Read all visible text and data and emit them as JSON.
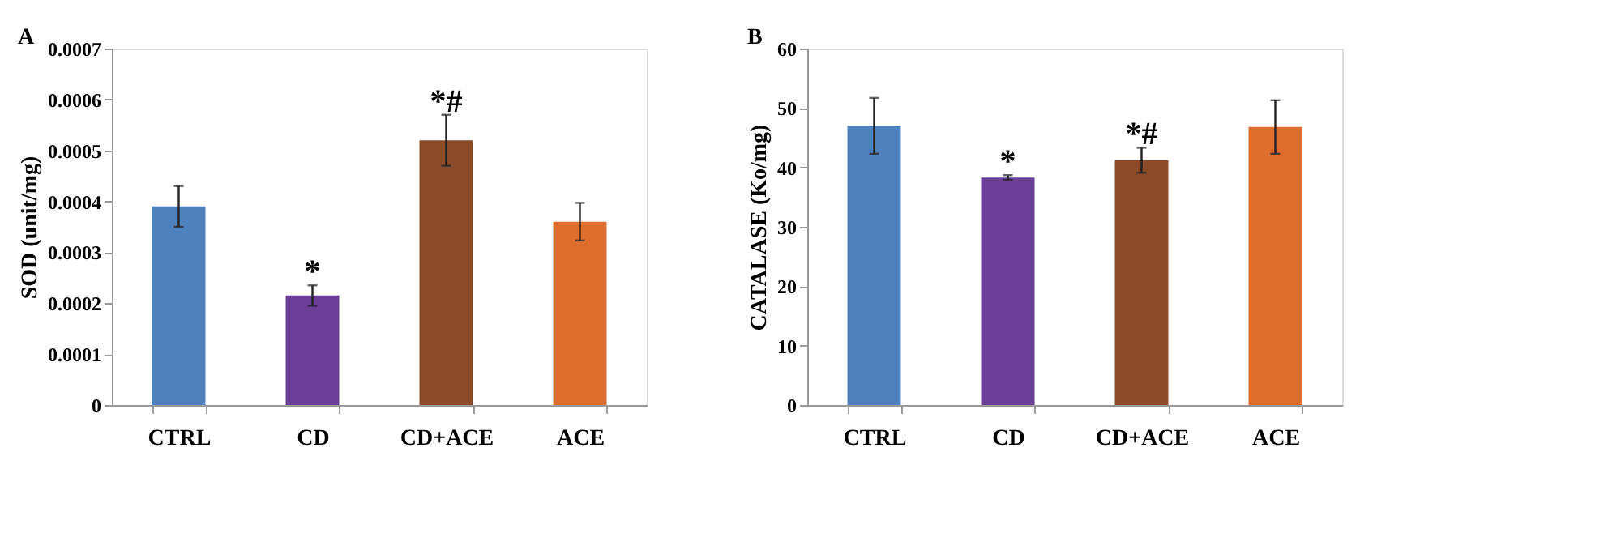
{
  "chart_data": [
    {
      "type": "bar",
      "title": "A",
      "ylabel": "SOD (unit/mg)",
      "categories": [
        "CTRL",
        "CD",
        "CD+ACE",
        "ACE"
      ],
      "values": [
        0.00039,
        0.000215,
        0.00052,
        0.00036
      ],
      "errors": [
        4e-05,
        2e-05,
        5e-05,
        3.7e-05
      ],
      "colors": [
        "#4f81bd",
        "#6b3f98",
        "#8b4b2b",
        "#dd6e2e"
      ],
      "ylim": [
        0,
        0.0007
      ],
      "yticks": [
        0,
        0.0001,
        0.0002,
        0.0003,
        0.0004,
        0.0005,
        0.0006,
        0.0007
      ],
      "annotations": [
        {
          "text": "*",
          "x": "CD",
          "y": 0.000235
        },
        {
          "text": "*#",
          "x": "CD+ACE",
          "y": 0.00057
        }
      ],
      "grid": false
    },
    {
      "type": "bar",
      "title": "B",
      "ylabel": "CATALASE  (Ko/mg)",
      "categories": [
        "CTRL",
        "CD",
        "CD+ACE",
        "ACE"
      ],
      "values": [
        47,
        38.3,
        41.2,
        46.8
      ],
      "errors": [
        4.7,
        0.4,
        2.1,
        4.5
      ],
      "colors": [
        "#4f81bd",
        "#6b3f98",
        "#8b4b2b",
        "#dd6e2e"
      ],
      "ylim": [
        0,
        60
      ],
      "yticks": [
        0,
        10,
        20,
        30,
        40,
        50,
        60
      ],
      "annotations": [
        {
          "text": "*",
          "x": "CD",
          "y": 38.7
        },
        {
          "text": "*#",
          "x": "CD+ACE",
          "y": 43.3
        }
      ],
      "grid": false
    }
  ]
}
